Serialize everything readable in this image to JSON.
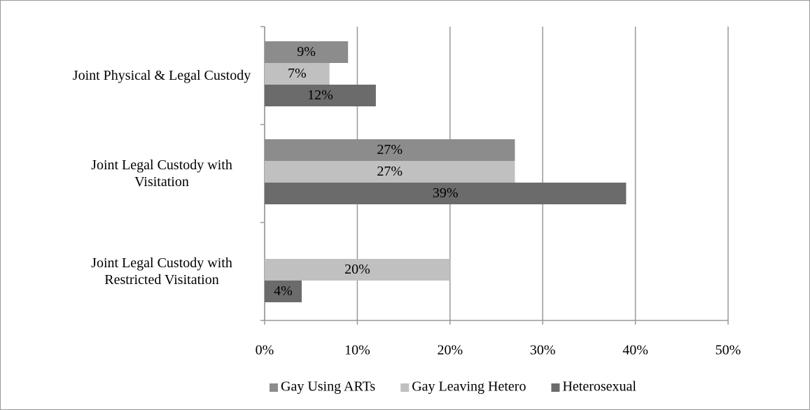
{
  "chart_data": {
    "type": "hbar",
    "categories": [
      "Joint Physical & Legal Custody",
      "Joint Legal Custody with Visitation",
      "Joint Legal Custody with Restricted Visitation"
    ],
    "series": [
      {
        "name": "Gay Using ARTs",
        "color": "#8c8c8c",
        "values": [
          9,
          27,
          null
        ],
        "value_labels": [
          "9%",
          "27%",
          null
        ]
      },
      {
        "name": "Gay Leaving Hetero",
        "color": "#c0c0c0",
        "values": [
          7,
          27,
          20
        ],
        "value_labels": [
          "7%",
          "27%",
          "20%"
        ]
      },
      {
        "name": "Heterosexual",
        "color": "#6b6b6b",
        "values": [
          12,
          39,
          4
        ],
        "value_labels": [
          "12%",
          "39%",
          "4%"
        ]
      }
    ],
    "xlim": [
      0,
      50
    ],
    "xticks": [
      {
        "value": 0,
        "label": "0%"
      },
      {
        "value": 10,
        "label": "10%"
      },
      {
        "value": 20,
        "label": "20%"
      },
      {
        "value": 30,
        "label": "30%"
      },
      {
        "value": 40,
        "label": "40%"
      },
      {
        "value": 50,
        "label": "50%"
      }
    ],
    "grid": true,
    "legend": "bottom"
  }
}
